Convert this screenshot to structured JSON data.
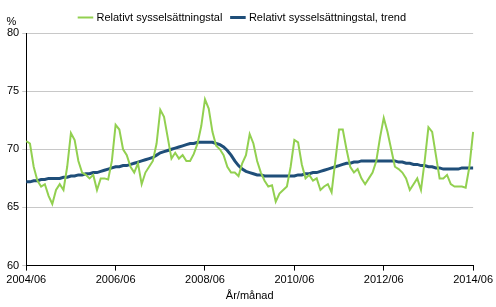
{
  "chart_data": {
    "type": "line",
    "x_label": "År/månad",
    "y_label": "%",
    "categories": [
      "2004/06",
      null,
      null,
      null,
      null,
      null,
      null,
      null,
      null,
      null,
      null,
      null,
      null,
      null,
      null,
      null,
      null,
      null,
      null,
      null,
      null,
      null,
      null,
      null,
      "2006/06",
      null,
      null,
      null,
      null,
      null,
      null,
      null,
      null,
      null,
      null,
      null,
      null,
      null,
      null,
      null,
      null,
      null,
      null,
      null,
      null,
      null,
      null,
      null,
      "2008/06",
      null,
      null,
      null,
      null,
      null,
      null,
      null,
      null,
      null,
      null,
      null,
      null,
      null,
      null,
      null,
      null,
      null,
      null,
      null,
      null,
      null,
      null,
      null,
      "2010/06",
      null,
      null,
      null,
      null,
      null,
      null,
      null,
      null,
      null,
      null,
      null,
      null,
      null,
      null,
      null,
      null,
      null,
      null,
      null,
      null,
      null,
      null,
      null,
      "2012/06",
      null,
      null,
      null,
      null,
      null,
      null,
      null,
      null,
      null,
      null,
      null,
      null,
      null,
      null,
      null,
      null,
      null,
      null,
      null,
      null,
      null,
      null,
      null,
      "2014/06"
    ],
    "series": [
      {
        "name": "Relativt sysselsättningstal",
        "color": "#92d050",
        "values": [
          70.7,
          70.5,
          68.5,
          67.3,
          66.8,
          67.0,
          66.0,
          65.3,
          66.5,
          67.0,
          66.5,
          68.5,
          71.4,
          70.8,
          69.0,
          68.0,
          67.8,
          67.5,
          67.8,
          66.5,
          67.5,
          67.5,
          67.4,
          69.0,
          72.1,
          71.7,
          70.0,
          69.5,
          68.5,
          68.0,
          68.8,
          67.0,
          68.0,
          68.5,
          69.0,
          70.5,
          73.4,
          72.8,
          71.0,
          69.2,
          69.7,
          69.2,
          69.5,
          69.0,
          69.0,
          69.6,
          70.5,
          72.0,
          74.3,
          73.5,
          71.5,
          70.3,
          70.0,
          69.5,
          68.5,
          68.0,
          68.0,
          67.7,
          68.8,
          69.5,
          71.3,
          70.5,
          69.0,
          68.0,
          67.3,
          66.8,
          66.9,
          65.5,
          66.2,
          66.5,
          66.8,
          68.5,
          70.8,
          70.6,
          68.7,
          67.5,
          67.8,
          67.3,
          67.5,
          66.5,
          66.8,
          67.0,
          66.3,
          69.0,
          71.7,
          71.7,
          70.0,
          68.5,
          68.0,
          68.3,
          67.5,
          67.0,
          67.5,
          68.0,
          69.0,
          71.0,
          72.7,
          71.5,
          70.0,
          68.5,
          68.3,
          68.0,
          67.5,
          66.5,
          67.0,
          67.5,
          66.5,
          69.0,
          71.9,
          71.5,
          69.5,
          67.5,
          67.5,
          67.8,
          67.0,
          66.8,
          66.8,
          66.8,
          66.7,
          68.5,
          71.5
        ]
      },
      {
        "name": "Relativt sysselsättningstal, trend",
        "color": "#1f4e79",
        "values": [
          67.2,
          67.2,
          67.3,
          67.3,
          67.4,
          67.4,
          67.5,
          67.5,
          67.5,
          67.5,
          67.6,
          67.6,
          67.7,
          67.7,
          67.8,
          67.8,
          67.9,
          67.9,
          68.0,
          68.0,
          68.1,
          68.2,
          68.3,
          68.4,
          68.5,
          68.5,
          68.6,
          68.6,
          68.7,
          68.8,
          68.9,
          69.0,
          69.1,
          69.2,
          69.3,
          69.5,
          69.7,
          69.8,
          69.9,
          70.0,
          70.1,
          70.2,
          70.3,
          70.4,
          70.5,
          70.5,
          70.6,
          70.6,
          70.6,
          70.6,
          70.6,
          70.5,
          70.4,
          70.2,
          69.9,
          69.5,
          69.0,
          68.6,
          68.3,
          68.1,
          68.0,
          67.9,
          67.8,
          67.8,
          67.7,
          67.7,
          67.7,
          67.7,
          67.7,
          67.7,
          67.7,
          67.7,
          67.7,
          67.8,
          67.8,
          67.9,
          67.9,
          68.0,
          68.0,
          68.1,
          68.2,
          68.3,
          68.4,
          68.5,
          68.6,
          68.7,
          68.8,
          68.8,
          68.9,
          68.9,
          69.0,
          69.0,
          69.0,
          69.0,
          69.0,
          69.0,
          69.0,
          69.0,
          69.0,
          69.0,
          68.9,
          68.9,
          68.8,
          68.8,
          68.7,
          68.7,
          68.6,
          68.6,
          68.5,
          68.5,
          68.4,
          68.4,
          68.3,
          68.3,
          68.3,
          68.3,
          68.3,
          68.4,
          68.4,
          68.4,
          68.4
        ]
      }
    ],
    "ylim": [
      60,
      80
    ],
    "yticks": [
      60,
      65,
      70,
      75,
      80
    ],
    "grid": true,
    "legend": "top"
  }
}
